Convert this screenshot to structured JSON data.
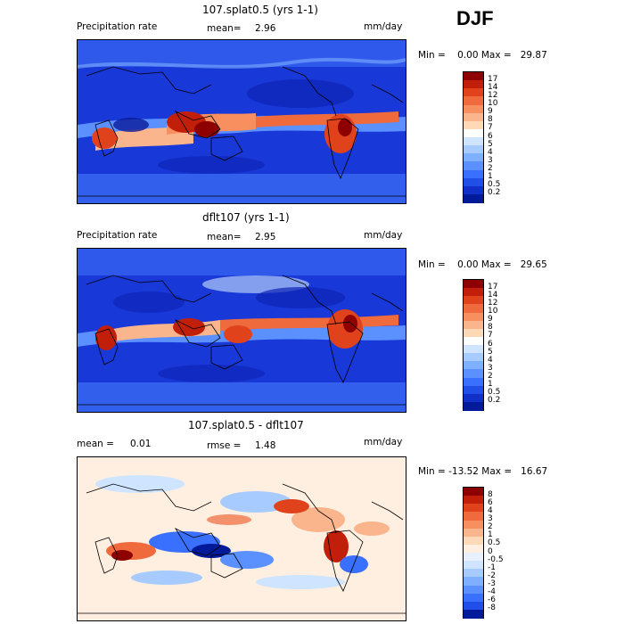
{
  "season": "DJF",
  "panels": [
    {
      "title": "107.splat0.5 (yrs 1-1)",
      "left_label": "Precipitation rate",
      "mean_label": "mean=",
      "mean_value": "2.96",
      "units": "mm/day",
      "minmax": "Min =    0.00 Max =   29.87",
      "colorbar_labels": [
        "17",
        "14",
        "12",
        "10",
        "9",
        "8",
        "7",
        "6",
        "5",
        "4",
        "3",
        "2",
        "1",
        "0.5",
        "0.2"
      ],
      "colorbar_colors": [
        "#8e0000",
        "#c21f0a",
        "#e0421c",
        "#ef6a3c",
        "#f88f5e",
        "#fbb58c",
        "#fed9b8",
        "#ffffff",
        "#cfe4ff",
        "#a7cbff",
        "#7fafff",
        "#5a90ff",
        "#3a70ff",
        "#1f4fe6",
        "#1030c8",
        "#001a99"
      ]
    },
    {
      "title": "dflt107 (yrs 1-1)",
      "left_label": "Precipitation rate",
      "mean_label": "mean=",
      "mean_value": "2.95",
      "units": "mm/day",
      "minmax": "Min =    0.00 Max =   29.65",
      "colorbar_labels": [
        "17",
        "14",
        "12",
        "10",
        "9",
        "8",
        "7",
        "6",
        "5",
        "4",
        "3",
        "2",
        "1",
        "0.5",
        "0.2"
      ],
      "colorbar_colors": [
        "#8e0000",
        "#c21f0a",
        "#e0421c",
        "#ef6a3c",
        "#f88f5e",
        "#fbb58c",
        "#fed9b8",
        "#ffffff",
        "#cfe4ff",
        "#a7cbff",
        "#7fafff",
        "#5a90ff",
        "#3a70ff",
        "#1f4fe6",
        "#1030c8",
        "#001a99"
      ]
    },
    {
      "title": "107.splat0.5 - dflt107",
      "left_label": "mean =",
      "mean_label": "",
      "mean_value": "0.01",
      "rmse_label": "rmse =",
      "rmse_value": "1.48",
      "units": "mm/day",
      "minmax": "Min = -13.52 Max =   16.67",
      "colorbar_labels": [
        "8",
        "6",
        "4",
        "3",
        "2",
        "1",
        "0.5",
        "0",
        "-0.5",
        "-1",
        "-2",
        "-3",
        "-4",
        "-6",
        "-8"
      ],
      "colorbar_colors": [
        "#8e0000",
        "#c21f0a",
        "#e0421c",
        "#ef6a3c",
        "#f88f5e",
        "#fbb58c",
        "#fed9b8",
        "#ffefe0",
        "#e8f0ff",
        "#cfe4ff",
        "#a7cbff",
        "#7fafff",
        "#5a90ff",
        "#3a70ff",
        "#1f4fe6",
        "#001a99"
      ]
    }
  ]
}
